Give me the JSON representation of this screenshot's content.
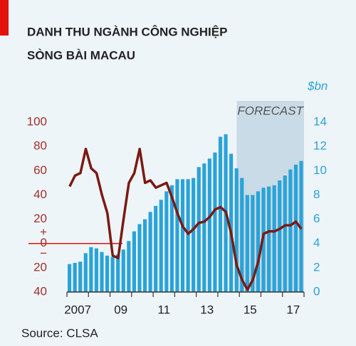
{
  "chart_data": {
    "type": "bar-line",
    "title": [
      "DANH THU NGÀNH CÔNG NGHIỆP",
      "SÒNG BÀI MACAU"
    ],
    "y2_label": "$bn",
    "annotations": [
      "FORECAST",
      "+",
      "−"
    ],
    "source": "Source: CLSA",
    "categories": [
      null,
      "2007",
      null,
      null,
      null,
      null,
      null,
      null,
      null,
      "09",
      null,
      null,
      null,
      null,
      null,
      null,
      null,
      "11",
      null,
      null,
      null,
      null,
      null,
      null,
      null,
      "13",
      null,
      null,
      null,
      null,
      null,
      null,
      null,
      "15",
      null,
      null,
      null,
      null,
      null,
      null,
      null,
      "17",
      null,
      null
    ],
    "series": [
      {
        "type": "bar",
        "axis": "y2",
        "color": "#2aa3d8",
        "values": [
          2.3,
          2.4,
          2.5,
          3.2,
          3.7,
          3.6,
          3.3,
          3.0,
          2.9,
          3.1,
          3.5,
          4.2,
          5.0,
          5.6,
          6.0,
          6.6,
          7.1,
          7.6,
          8.3,
          8.8,
          9.3,
          9.3,
          9.3,
          9.4,
          10.3,
          10.6,
          11.0,
          11.5,
          12.8,
          13.0,
          11.4,
          10.2,
          9.4,
          8.0,
          8.0,
          8.3,
          8.6,
          8.7,
          8.8,
          9.2,
          9.6,
          10.1,
          10.5,
          10.8
        ]
      },
      {
        "type": "line",
        "axis": "y",
        "color": "#7b1a12",
        "values": [
          47,
          56,
          58,
          78,
          62,
          58,
          40,
          25,
          -10,
          -12,
          20,
          50,
          58,
          78,
          50,
          52,
          46,
          48,
          50,
          38,
          25,
          14,
          8,
          12,
          17,
          18,
          22,
          28,
          30,
          26,
          8,
          -18,
          -30,
          -38,
          -30,
          -15,
          8,
          10,
          10,
          12,
          15,
          15,
          18,
          12
        ]
      }
    ],
    "ylim": [
      -40,
      100
    ],
    "yticks": [
      100,
      80,
      60,
      40,
      20,
      0,
      {
        "value": -20,
        "label": "20"
      },
      {
        "value": -40,
        "label": "40"
      }
    ],
    "y2lim": [
      0,
      14
    ],
    "y2ticks": [
      0,
      2,
      4,
      6,
      8,
      10,
      12,
      14
    ]
  }
}
